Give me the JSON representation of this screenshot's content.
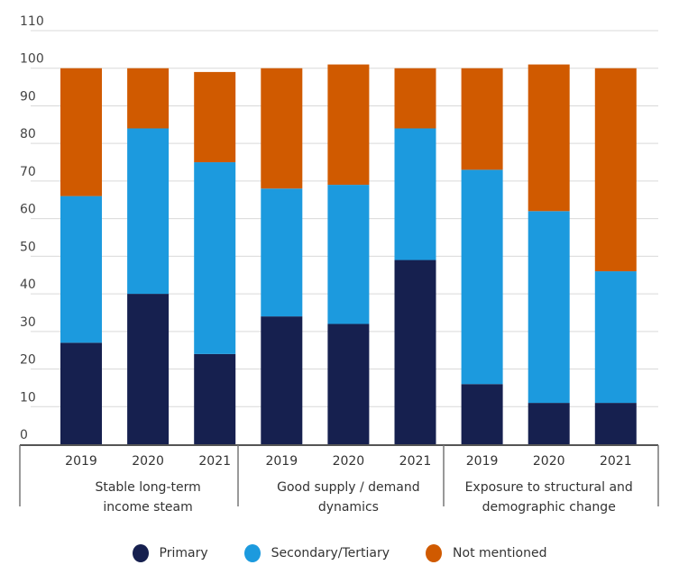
{
  "chart_data": {
    "type": "bar",
    "stacked": true,
    "title": "",
    "xlabel": "",
    "ylabel": "",
    "ylim": [
      0,
      110
    ],
    "yticks": [
      0,
      10,
      20,
      30,
      40,
      50,
      60,
      70,
      80,
      90,
      100,
      110
    ],
    "grid": true,
    "legend_position": "bottom",
    "groups": [
      {
        "label": "Stable long-term income steam",
        "label_lines": [
          "Stable long-term",
          "income steam"
        ],
        "categories": [
          "2019",
          "2020",
          "2021"
        ]
      },
      {
        "label": "Good supply / demand dynamics",
        "label_lines": [
          "Good supply / demand",
          "dynamics"
        ],
        "categories": [
          "2019",
          "2020",
          "2021"
        ]
      },
      {
        "label": "Exposure to structural and demographic change",
        "label_lines": [
          "Exposure to structural and",
          "demographic change"
        ],
        "categories": [
          "2019",
          "2020",
          "2021"
        ]
      }
    ],
    "categories": [
      "2019",
      "2020",
      "2021",
      "2019",
      "2020",
      "2021",
      "2019",
      "2020",
      "2021"
    ],
    "series": [
      {
        "name": "Primary",
        "color": "#16204f",
        "values": [
          27,
          40,
          24,
          34,
          32,
          49,
          16,
          11,
          11
        ]
      },
      {
        "name": "Secondary/Tertiary",
        "color": "#1c9ade",
        "values": [
          39,
          44,
          51,
          34,
          37,
          35,
          57,
          51,
          35
        ]
      },
      {
        "name": "Not mentioned",
        "color": "#d05a00",
        "values": [
          34,
          16,
          24,
          32,
          32,
          16,
          27,
          39,
          54
        ]
      }
    ]
  },
  "legend": {
    "items": [
      {
        "label": "Primary",
        "color": "#16204f"
      },
      {
        "label": "Secondary/Tertiary",
        "color": "#1c9ade"
      },
      {
        "label": "Not mentioned",
        "color": "#d05a00"
      }
    ]
  }
}
